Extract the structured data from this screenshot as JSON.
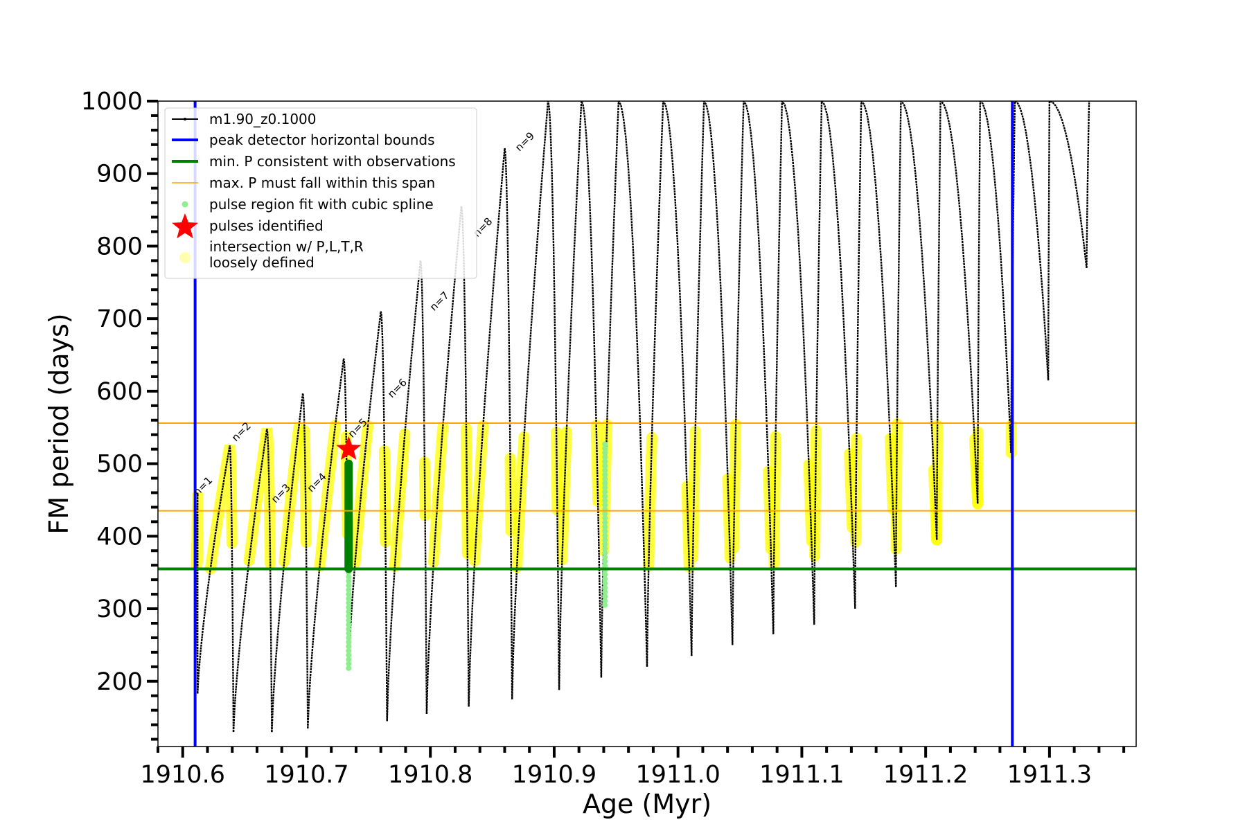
{
  "chart_data": {
    "type": "line",
    "xlabel": "Age (Myr)",
    "ylabel": "FM period (days)",
    "xlim": [
      1910.58,
      1911.37
    ],
    "ylim": [
      110,
      1000
    ],
    "x_ticks": [
      1910.6,
      1910.7,
      1910.8,
      1910.9,
      1911.0,
      1911.1,
      1911.2,
      1911.3
    ],
    "x_tick_labels": [
      "1910.6",
      "1910.7",
      "1910.8",
      "1910.9",
      "1911.0",
      "1911.1",
      "1911.2",
      "1911.3"
    ],
    "y_ticks": [
      200,
      300,
      400,
      500,
      600,
      700,
      800,
      900,
      1000
    ],
    "y_tick_labels": [
      "200",
      "300",
      "400",
      "500",
      "600",
      "700",
      "800",
      "900",
      "1000"
    ],
    "grid": false,
    "legend_position": "top-left",
    "legend": [
      {
        "label": "m1.90_z0.1000",
        "style": "line-dot",
        "color": "#000000"
      },
      {
        "label": "peak detector horizontal bounds",
        "style": "line",
        "color": "#0000ff"
      },
      {
        "label": "min. P consistent with observations",
        "style": "line",
        "color": "#008000"
      },
      {
        "label": "max. P must fall within this span",
        "style": "thin-line",
        "color": "#ffa500"
      },
      {
        "label": "pulse region fit with cubic spline",
        "style": "dot",
        "color": "#90ee90"
      },
      {
        "label": "pulses identified",
        "style": "star",
        "color": "#ff0000"
      },
      {
        "label": "intersection w/ P,L,T,R",
        "label2": "loosely defined",
        "style": "circle",
        "color": "#ffff99"
      }
    ],
    "vertical_lines": {
      "color": "#0000ff",
      "x": [
        1910.61,
        1911.27
      ]
    },
    "min_period_line": {
      "color": "#008000",
      "y": 355
    },
    "max_period_span": {
      "color": "#ffa500",
      "y": [
        435,
        556
      ]
    },
    "pulse_labels": [
      {
        "text": "n=1",
        "x": 1910.612,
        "y": 455
      },
      {
        "text": "n=2",
        "x": 1910.643,
        "y": 530
      },
      {
        "text": "n=3",
        "x": 1910.675,
        "y": 445
      },
      {
        "text": "n=4",
        "x": 1910.704,
        "y": 460
      },
      {
        "text": "n=5",
        "x": 1910.737,
        "y": 535
      },
      {
        "text": "n=6",
        "x": 1910.769,
        "y": 590
      },
      {
        "text": "n=7",
        "x": 1910.803,
        "y": 710
      },
      {
        "text": "n=8",
        "x": 1910.838,
        "y": 812
      },
      {
        "text": "n=9",
        "x": 1910.872,
        "y": 930
      }
    ],
    "pulses_identified": [
      {
        "x": 1910.734,
        "y": 520
      }
    ],
    "series": [
      {
        "name": "m1.90_z0.1000",
        "color": "#000000",
        "pulses": [
          {
            "start": 1910.61,
            "peak": 1910.612,
            "end": 1910.612,
            "min": 115,
            "max": 460
          },
          {
            "start": 1910.612,
            "peak": 1910.638,
            "end": 1910.641,
            "min": 183,
            "max": 525
          },
          {
            "start": 1910.641,
            "peak": 1910.668,
            "end": 1910.672,
            "min": 130,
            "max": 548
          },
          {
            "start": 1910.672,
            "peak": 1910.697,
            "end": 1910.701,
            "min": 130,
            "max": 597
          },
          {
            "start": 1910.701,
            "peak": 1910.73,
            "end": 1910.734,
            "min": 135,
            "max": 645
          },
          {
            "start": 1910.734,
            "peak": 1910.76,
            "end": 1910.765,
            "min": 215,
            "max": 710
          },
          {
            "start": 1910.765,
            "peak": 1910.792,
            "end": 1910.797,
            "min": 145,
            "max": 780
          },
          {
            "start": 1910.797,
            "peak": 1910.825,
            "end": 1910.831,
            "min": 155,
            "max": 855
          },
          {
            "start": 1910.831,
            "peak": 1910.86,
            "end": 1910.866,
            "min": 165,
            "max": 935
          },
          {
            "start": 1910.866,
            "peak": 1910.895,
            "end": 1910.904,
            "min": 175,
            "max": 1000
          },
          {
            "start": 1910.904,
            "peak": 1910.922,
            "end": 1910.938,
            "min": 188,
            "max": 1000
          },
          {
            "start": 1910.938,
            "peak": 1910.952,
            "end": 1910.975,
            "min": 205,
            "max": 1000
          },
          {
            "start": 1910.975,
            "peak": 1910.988,
            "end": 1911.011,
            "min": 220,
            "max": 1000
          },
          {
            "start": 1911.011,
            "peak": 1911.021,
            "end": 1911.044,
            "min": 235,
            "max": 1000
          },
          {
            "start": 1911.044,
            "peak": 1911.053,
            "end": 1911.077,
            "min": 250,
            "max": 1000
          },
          {
            "start": 1911.077,
            "peak": 1911.084,
            "end": 1911.11,
            "min": 265,
            "max": 1000
          },
          {
            "start": 1911.11,
            "peak": 1911.116,
            "end": 1911.143,
            "min": 278,
            "max": 1000
          },
          {
            "start": 1911.143,
            "peak": 1911.148,
            "end": 1911.176,
            "min": 300,
            "max": 1000
          },
          {
            "start": 1911.176,
            "peak": 1911.18,
            "end": 1911.209,
            "min": 330,
            "max": 1000
          },
          {
            "start": 1911.209,
            "peak": 1911.212,
            "end": 1911.242,
            "min": 395,
            "max": 1000
          },
          {
            "start": 1911.242,
            "peak": 1911.244,
            "end": 1911.269,
            "min": 445,
            "max": 1000
          },
          {
            "start": 1911.269,
            "peak": 1911.272,
            "end": 1911.299,
            "min": 515,
            "max": 1000
          },
          {
            "start": 1911.299,
            "peak": 1911.3,
            "end": 1911.33,
            "min": 615,
            "max": 1000
          },
          {
            "start": 1911.33,
            "peak": 1911.332,
            "end": 1911.332,
            "min": 770,
            "max": 1000
          }
        ]
      }
    ],
    "spline_fit_region": {
      "color": "#90ee90",
      "x": [
        1910.734,
        1910.941
      ],
      "y": [
        [
          218,
          500
        ],
        [
          305,
          530
        ]
      ]
    },
    "green_pulse_segment": {
      "color": "#008000",
      "x": 1910.734,
      "y": [
        355,
        500
      ]
    },
    "highlight_color": "#ffff00"
  }
}
